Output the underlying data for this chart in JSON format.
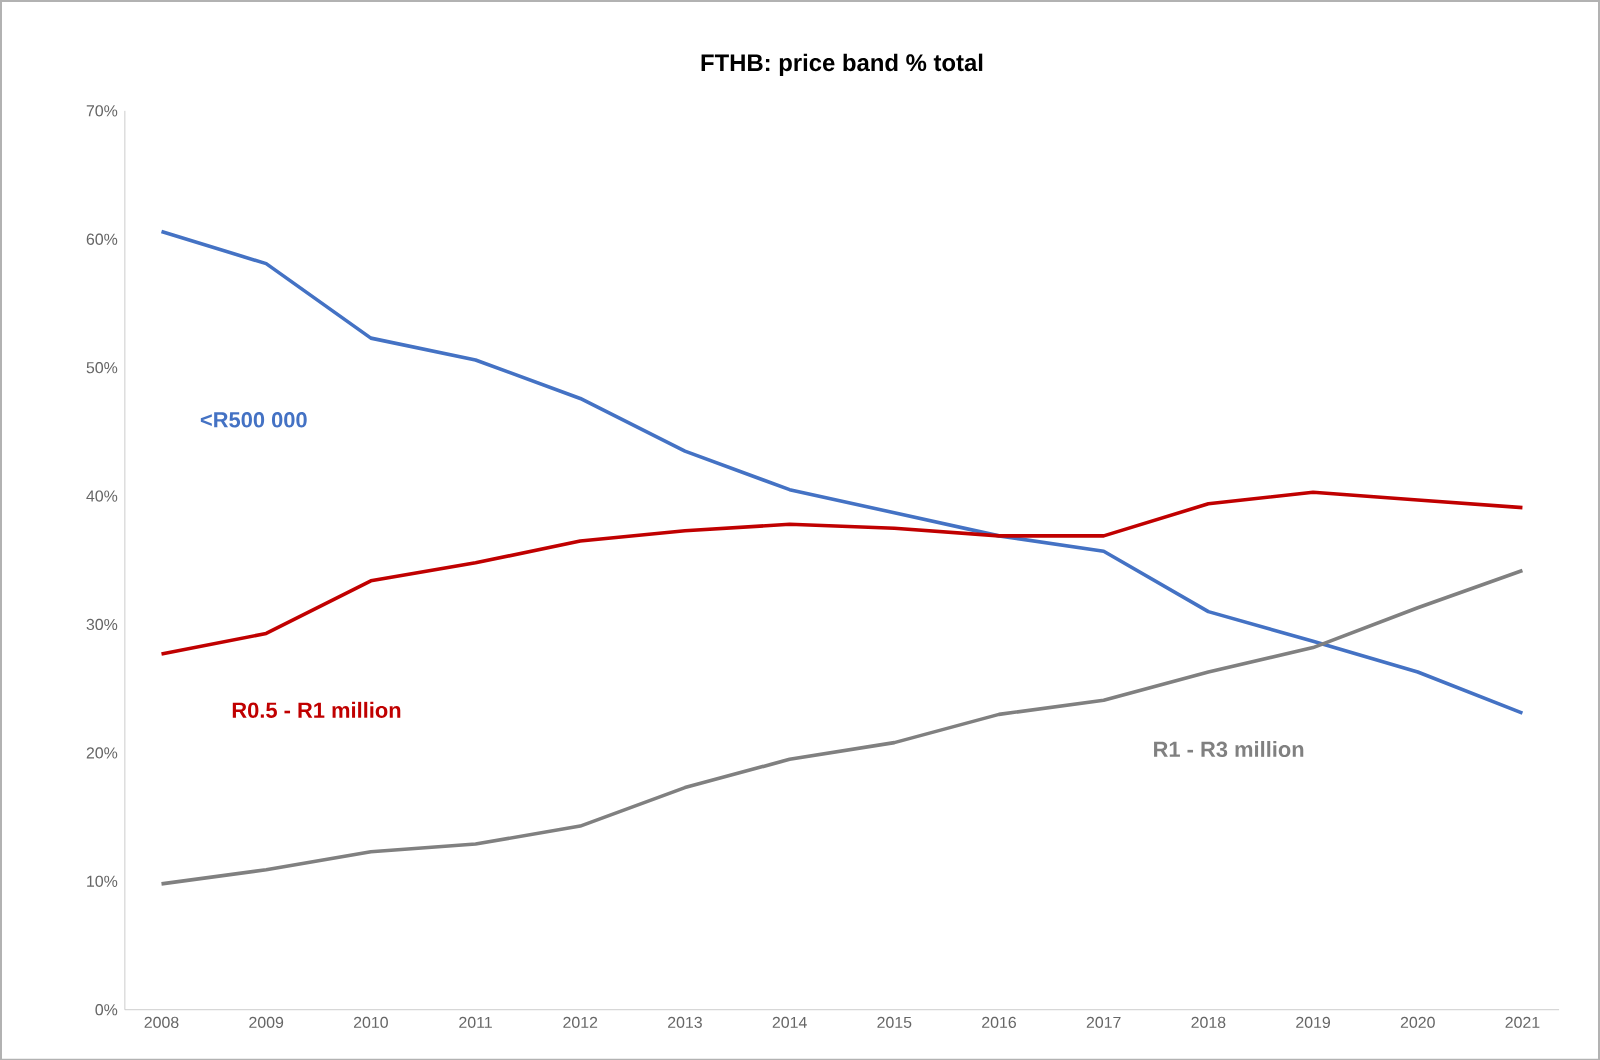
{
  "chart_data": {
    "type": "line",
    "title": "FTHB: price band % total",
    "categories": [
      "2008",
      "2009",
      "2010",
      "2011",
      "2012",
      "2013",
      "2014",
      "2015",
      "2016",
      "2017",
      "2018",
      "2019",
      "2020",
      "2021"
    ],
    "series": [
      {
        "name": "<R500 000",
        "color": "#4472c4",
        "values": [
          60.6,
          58.1,
          52.3,
          50.6,
          47.6,
          43.5,
          40.5,
          38.7,
          36.9,
          35.7,
          31.0,
          28.7,
          26.3,
          23.1
        ]
      },
      {
        "name": "R0.5 - R1 million",
        "color": "#c00000",
        "values": [
          27.7,
          29.3,
          33.4,
          34.8,
          36.5,
          37.3,
          37.8,
          37.5,
          36.9,
          36.9,
          39.4,
          40.3,
          39.7,
          39.1
        ]
      },
      {
        "name": "R1 - R3 million",
        "color": "#808080",
        "values": [
          9.8,
          10.9,
          12.3,
          12.9,
          14.3,
          17.3,
          19.5,
          20.8,
          23.0,
          24.1,
          26.3,
          28.2,
          31.3,
          34.2
        ]
      }
    ],
    "ylim": [
      0,
      70
    ],
    "yticks": [
      {
        "value": 0,
        "label": "0%"
      },
      {
        "value": 10,
        "label": "10%"
      },
      {
        "value": 20,
        "label": "20%"
      },
      {
        "value": 30,
        "label": "30%"
      },
      {
        "value": 40,
        "label": "40%"
      },
      {
        "value": 50,
        "label": "50%"
      },
      {
        "value": 60,
        "label": "60%"
      },
      {
        "value": 70,
        "label": "70%"
      }
    ],
    "grid": false,
    "legend": false,
    "marker": "none",
    "line_style": "solid"
  }
}
